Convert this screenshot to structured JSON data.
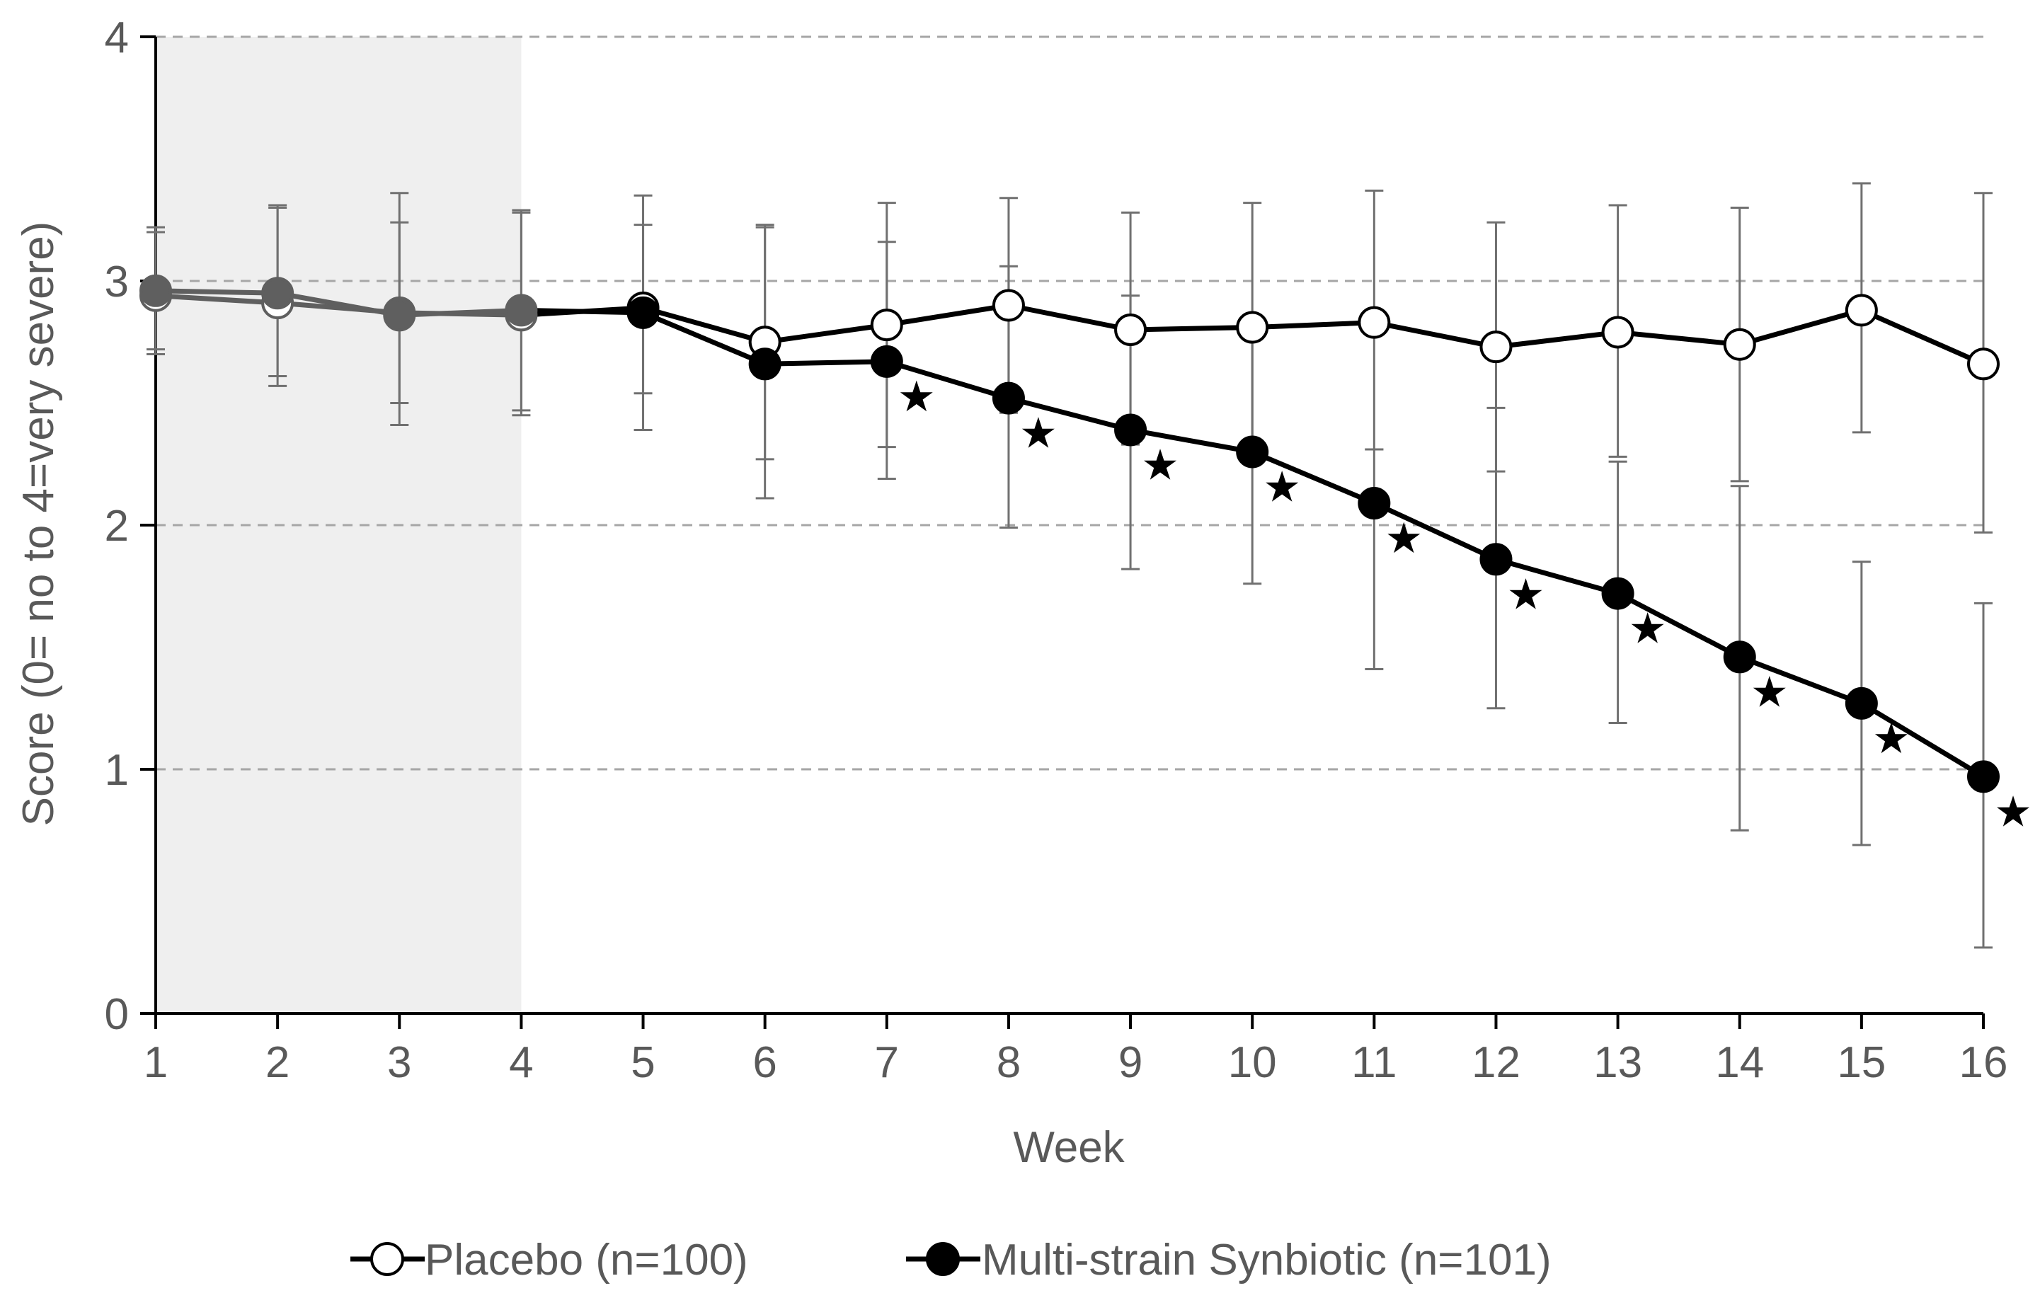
{
  "chart_data": {
    "type": "line",
    "title": "",
    "xlabel": "Week",
    "ylabel": "Score (0= no to 4=very severe)",
    "xlim": [
      1,
      16
    ],
    "ylim": [
      0,
      4
    ],
    "x_ticks": [
      "1",
      "2",
      "3",
      "4",
      "5",
      "6",
      "7",
      "8",
      "9",
      "10",
      "11",
      "12",
      "13",
      "14",
      "15",
      "16"
    ],
    "y_ticks": [
      "0",
      "1",
      "2",
      "3",
      "4"
    ],
    "grid": "dashed horizontal",
    "shaded_region": {
      "from_week": 1,
      "to_week": 4
    },
    "legend_position": "bottom-center",
    "significance_marker": "★",
    "x": [
      1,
      2,
      3,
      4,
      5,
      6,
      7,
      8,
      9,
      10,
      11,
      12,
      13,
      14,
      15,
      16
    ],
    "series": [
      {
        "name": "Placebo (n=100)",
        "marker": "open-circle",
        "values": [
          2.94,
          2.91,
          2.87,
          2.86,
          2.89,
          2.75,
          2.82,
          2.9,
          2.8,
          2.81,
          2.83,
          2.73,
          2.79,
          2.74,
          2.88,
          2.66
        ],
        "error_low": [
          2.7,
          2.61,
          2.5,
          2.47,
          2.54,
          2.27,
          2.32,
          2.46,
          2.33,
          2.3,
          2.31,
          2.22,
          2.28,
          2.18,
          2.38,
          1.97
        ],
        "error_high": [
          3.22,
          3.31,
          3.36,
          3.29,
          3.35,
          3.23,
          3.32,
          3.34,
          3.28,
          3.32,
          3.37,
          3.24,
          3.31,
          3.3,
          3.4,
          3.36
        ]
      },
      {
        "name": "Multi-strain Synbiotic (n=101)",
        "marker": "filled-circle",
        "values": [
          2.96,
          2.95,
          2.86,
          2.88,
          2.87,
          2.66,
          2.67,
          2.52,
          2.39,
          2.3,
          2.09,
          1.86,
          1.72,
          1.46,
          1.27,
          0.97
        ],
        "error_low": [
          2.72,
          2.57,
          2.41,
          2.45,
          2.39,
          2.11,
          2.19,
          1.99,
          1.82,
          1.76,
          1.41,
          1.25,
          1.19,
          0.75,
          0.69,
          0.27
        ],
        "error_high": [
          3.2,
          3.3,
          3.24,
          3.28,
          3.23,
          3.22,
          3.16,
          3.06,
          2.94,
          2.85,
          2.31,
          2.48,
          2.26,
          2.16,
          1.85,
          1.68
        ],
        "significant_weeks": [
          7,
          8,
          9,
          10,
          11,
          12,
          13,
          14,
          15,
          16
        ]
      }
    ]
  }
}
